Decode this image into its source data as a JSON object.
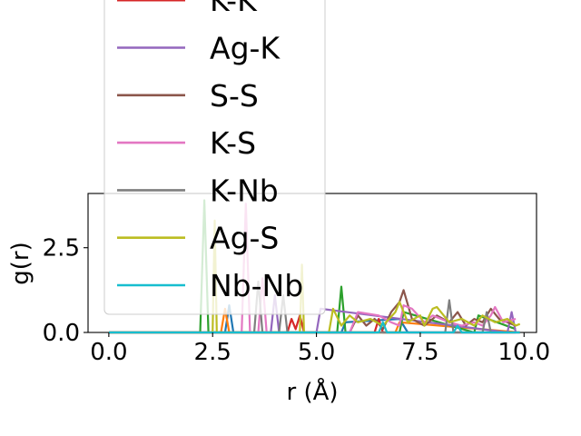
{
  "chart_data": {
    "type": "line",
    "title": "",
    "xlabel": "r (Å)",
    "ylabel": "g(r)",
    "xlim": [
      -0.5,
      10.3
    ],
    "ylim": [
      0,
      4.1
    ],
    "xticks": [
      0.0,
      2.5,
      5.0,
      7.5,
      10.0
    ],
    "xtick_labels": [
      "0.0",
      "2.5",
      "5.0",
      "7.5",
      "10.0"
    ],
    "yticks": [
      0.0,
      2.5
    ],
    "ytick_labels": [
      "0.0",
      "2.5"
    ],
    "legend_position": "upper-left, extends above plot",
    "series": [
      {
        "color": "#1f77b4",
        "x": [
          0,
          2.8,
          2.9,
          3.0,
          5.6,
          5.7,
          7.0,
          7.2,
          9.8
        ],
        "y": [
          0,
          0,
          0.8,
          0,
          0,
          0.3,
          0.4,
          0,
          0
        ]
      },
      {
        "color": "#ff7f0e",
        "x": [
          0,
          2.7,
          2.8,
          2.9,
          6.9,
          7.0,
          9.9
        ],
        "y": [
          0,
          0,
          0.7,
          0,
          0,
          0.3,
          0
        ]
      },
      {
        "color": "#2ca02c",
        "x": [
          0,
          2.2,
          2.3,
          2.4,
          5.5,
          5.6,
          5.7,
          7.0,
          7.1,
          8.8,
          8.9,
          9.8
        ],
        "y": [
          0,
          0,
          3.9,
          0,
          0,
          1.35,
          0,
          0,
          0.6,
          0,
          0.5,
          0.1
        ]
      },
      {
        "name": "K-K",
        "color": "#d62728",
        "x": [
          0,
          4.3,
          4.4,
          4.5,
          4.6,
          4.7,
          6.4,
          6.5,
          6.6,
          9.9
        ],
        "y": [
          0,
          0,
          0.4,
          0.1,
          0.5,
          0,
          0,
          0.4,
          0,
          0
        ]
      },
      {
        "name": "Ag-K",
        "color": "#9467bd",
        "x": [
          0,
          3.9,
          4.0,
          4.1,
          5.0,
          5.1,
          9.6,
          9.7,
          9.8
        ],
        "y": [
          0,
          0,
          1.1,
          0,
          0,
          0.7,
          0,
          0.6,
          0
        ]
      },
      {
        "name": "S-S",
        "color": "#8c564b",
        "x": [
          0,
          5.8,
          6.0,
          6.2,
          6.4,
          6.6,
          6.8,
          7.0,
          7.1,
          7.3,
          7.6,
          7.9,
          8.2,
          8.4,
          8.6,
          8.8,
          9.0,
          9.2,
          9.4,
          9.6,
          9.8
        ],
        "y": [
          0,
          0,
          0.5,
          0.2,
          0.4,
          0.1,
          0.6,
          0.9,
          1.25,
          0.4,
          0.2,
          0.5,
          0.3,
          0.6,
          0.2,
          0.4,
          0.3,
          0.7,
          0.4,
          0.3,
          0.2
        ]
      },
      {
        "name": "K-S",
        "color": "#e377c2",
        "x": [
          0,
          3.2,
          3.3,
          3.4,
          3.6,
          3.7,
          3.8,
          5.8,
          6.0,
          6.5,
          6.8,
          7.0,
          7.1,
          7.3,
          7.6,
          7.8,
          8.2,
          8.5,
          8.8,
          9.0,
          9.2,
          9.3,
          9.5,
          9.8
        ],
        "y": [
          0,
          0,
          3.8,
          0,
          0,
          1.6,
          0,
          0,
          0.6,
          0.5,
          0.3,
          0.2,
          0.8,
          0.7,
          0.3,
          0.5,
          0.3,
          0.2,
          0.3,
          0.2,
          0.5,
          0.75,
          0.3,
          0.4
        ]
      },
      {
        "name": "K-Nb",
        "color": "#7f7f7f",
        "x": [
          0,
          3.5,
          3.6,
          3.7,
          4.1,
          4.2,
          4.3,
          8.1,
          8.2,
          8.3,
          9.0,
          9.1,
          9.2,
          9.9
        ],
        "y": [
          0,
          0,
          1.5,
          0,
          0,
          1.1,
          0,
          0,
          0.95,
          0,
          0,
          0.6,
          0,
          0
        ]
      },
      {
        "name": "Ag-S",
        "color": "#bcbd22",
        "x": [
          0,
          2.5,
          2.55,
          2.6,
          4.6,
          4.65,
          4.7,
          5.3,
          5.4,
          5.6,
          5.8,
          6.0,
          6.3,
          6.6,
          6.9,
          7.0,
          7.2,
          7.5,
          7.6,
          7.8,
          7.9,
          8.2,
          8.5,
          8.8,
          9.0,
          9.3,
          9.6,
          9.8,
          9.9
        ],
        "y": [
          0,
          0,
          3.3,
          0,
          0,
          2.0,
          0,
          0,
          0.7,
          0.2,
          0.5,
          0.3,
          0.4,
          0.2,
          0.6,
          0.9,
          0.3,
          0.5,
          0.2,
          0.7,
          0.75,
          0.3,
          0.4,
          0.2,
          0.5,
          0.3,
          0.4,
          0.2,
          0.25
        ]
      },
      {
        "name": "Nb-Nb",
        "color": "#17becf",
        "x": [
          0,
          6.5,
          6.6,
          6.7,
          8.3,
          8.4,
          8.5,
          9.9
        ],
        "y": [
          0,
          0,
          0.3,
          0,
          0,
          0.2,
          0,
          0
        ]
      }
    ]
  }
}
